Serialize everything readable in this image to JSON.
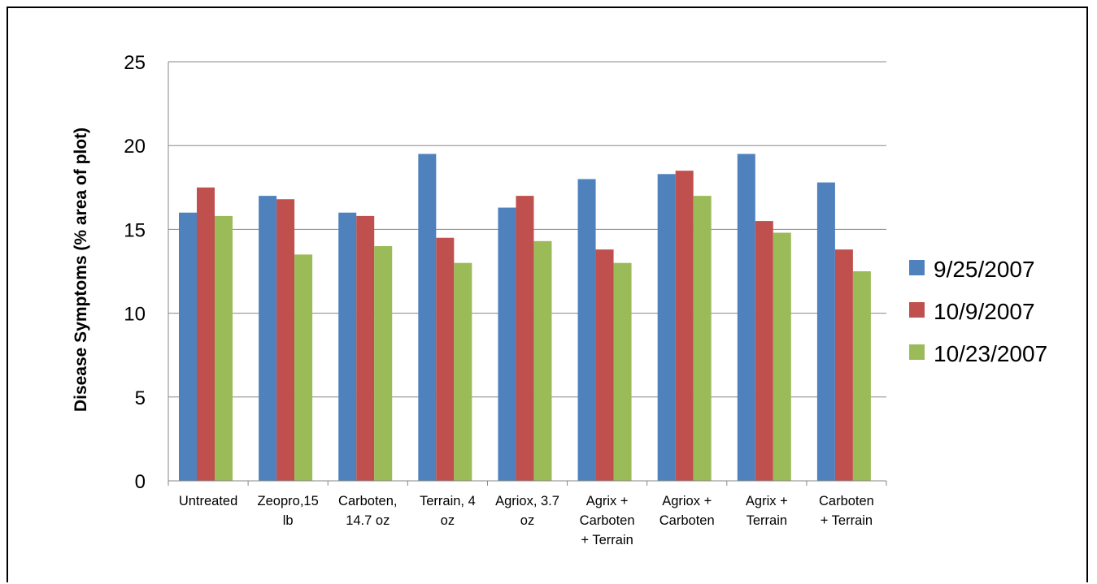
{
  "chart_data": {
    "type": "bar",
    "title": "",
    "xlabel": "",
    "ylabel": "Disease Symptoms (% area of plot)",
    "ylim": [
      0,
      25
    ],
    "yticks": [
      0,
      5,
      10,
      15,
      20,
      25
    ],
    "grid": true,
    "legend_position": "right",
    "categories": [
      [
        "Untreated"
      ],
      [
        "Zeopro,15",
        "lb"
      ],
      [
        "Carboten,",
        "14.7 oz"
      ],
      [
        "Terrain, 4",
        "oz"
      ],
      [
        "Agriox, 3.7",
        "oz"
      ],
      [
        "Agrix +",
        "Carboten",
        "+ Terrain"
      ],
      [
        "Agriox +",
        "Carboten"
      ],
      [
        "Agrix +",
        "Terrain"
      ],
      [
        "Carboten",
        "+ Terrain"
      ]
    ],
    "series": [
      {
        "name": "9/25/2007",
        "color": "#4f81bd",
        "values": [
          16,
          17,
          16,
          19.5,
          16.3,
          18,
          18.3,
          19.5,
          17.8
        ]
      },
      {
        "name": "10/9/2007",
        "color": "#c0504d",
        "values": [
          17.5,
          16.8,
          15.8,
          14.5,
          17,
          13.8,
          18.5,
          15.5,
          13.8
        ]
      },
      {
        "name": "10/23/2007",
        "color": "#9bbb59",
        "values": [
          15.8,
          13.5,
          14,
          13,
          14.3,
          13,
          17,
          14.8,
          12.5
        ]
      }
    ]
  }
}
